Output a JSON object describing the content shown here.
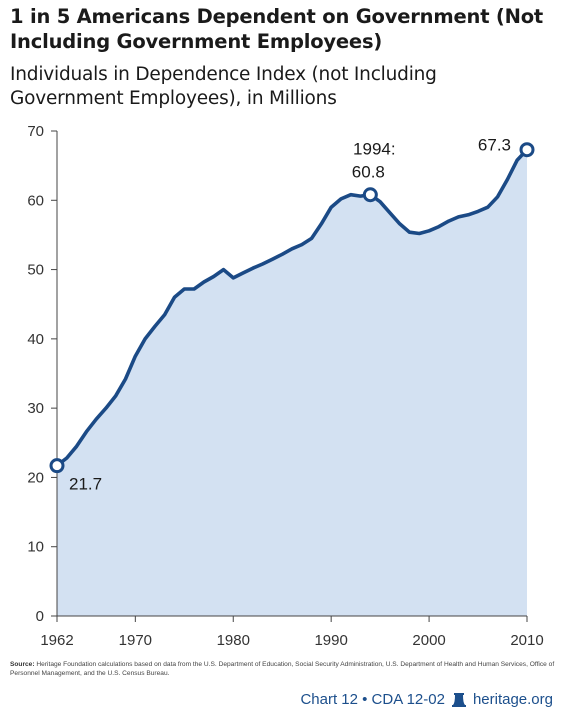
{
  "title": "1 in 5 Americans Dependent on Government (Not Including Government Employees)",
  "subtitle": "Individuals in Dependence Index (not Including Government Employees), in Millions",
  "source_label": "Source:",
  "source_text": "Heritage Foundation calculations based on data from the U.S. Department of Education, Social Security Administration, U.S. Department of Health and Human Services, Office of Personnel Management, and the U.S. Census Bureau.",
  "footer": {
    "chart_label": "Chart 12 • CDA 12-02",
    "site": "heritage.org"
  },
  "colors": {
    "line": "#1b4a86",
    "fill": "#d3e1f2",
    "axis": "#444444"
  },
  "icons": {
    "footer_logo": "liberty-bell-icon"
  },
  "chart_data": {
    "type": "area",
    "title": "Individuals in Dependence Index (not Including Government Employees), in Millions",
    "xlabel": "",
    "ylabel": "",
    "xlim": [
      1962,
      2010
    ],
    "ylim": [
      0,
      70
    ],
    "x_ticks": [
      1962,
      1970,
      1980,
      1990,
      2000,
      2010
    ],
    "y_ticks": [
      0,
      10,
      20,
      30,
      40,
      50,
      60,
      70
    ],
    "grid": false,
    "series": [
      {
        "x": [
          1962,
          1963,
          1964,
          1965,
          1966,
          1967,
          1968,
          1969,
          1970,
          1971,
          1972,
          1973,
          1974,
          1975,
          1976,
          1977,
          1978,
          1979,
          1980,
          1981,
          1982,
          1983,
          1984,
          1985,
          1986,
          1987,
          1988,
          1989,
          1990,
          1991,
          1992,
          1993,
          1994,
          1995,
          1996,
          1997,
          1998,
          1999,
          2000,
          2001,
          2002,
          2003,
          2004,
          2005,
          2006,
          2007,
          2008,
          2009,
          2010
        ],
        "values": [
          21.7,
          22.8,
          24.5,
          26.6,
          28.4,
          30.0,
          31.8,
          34.2,
          37.5,
          40.0,
          41.8,
          43.5,
          46.0,
          47.2,
          47.2,
          48.2,
          49.0,
          50.0,
          48.8,
          49.5,
          50.2,
          50.8,
          51.5,
          52.2,
          53.0,
          53.6,
          54.5,
          56.6,
          59.0,
          60.2,
          60.8,
          60.6,
          60.8,
          59.8,
          58.2,
          56.6,
          55.4,
          55.2,
          55.6,
          56.2,
          57.0,
          57.6,
          57.9,
          58.4,
          59.0,
          60.5,
          63.0,
          65.8,
          67.3
        ]
      }
    ],
    "annotations": [
      {
        "x": 1962,
        "y": 21.7,
        "label": "21.7"
      },
      {
        "x": 1994,
        "y": 60.8,
        "label_line1": "1994:",
        "label_line2": "60.8"
      },
      {
        "x": 2010,
        "y": 67.3,
        "label": "67.3"
      }
    ]
  }
}
